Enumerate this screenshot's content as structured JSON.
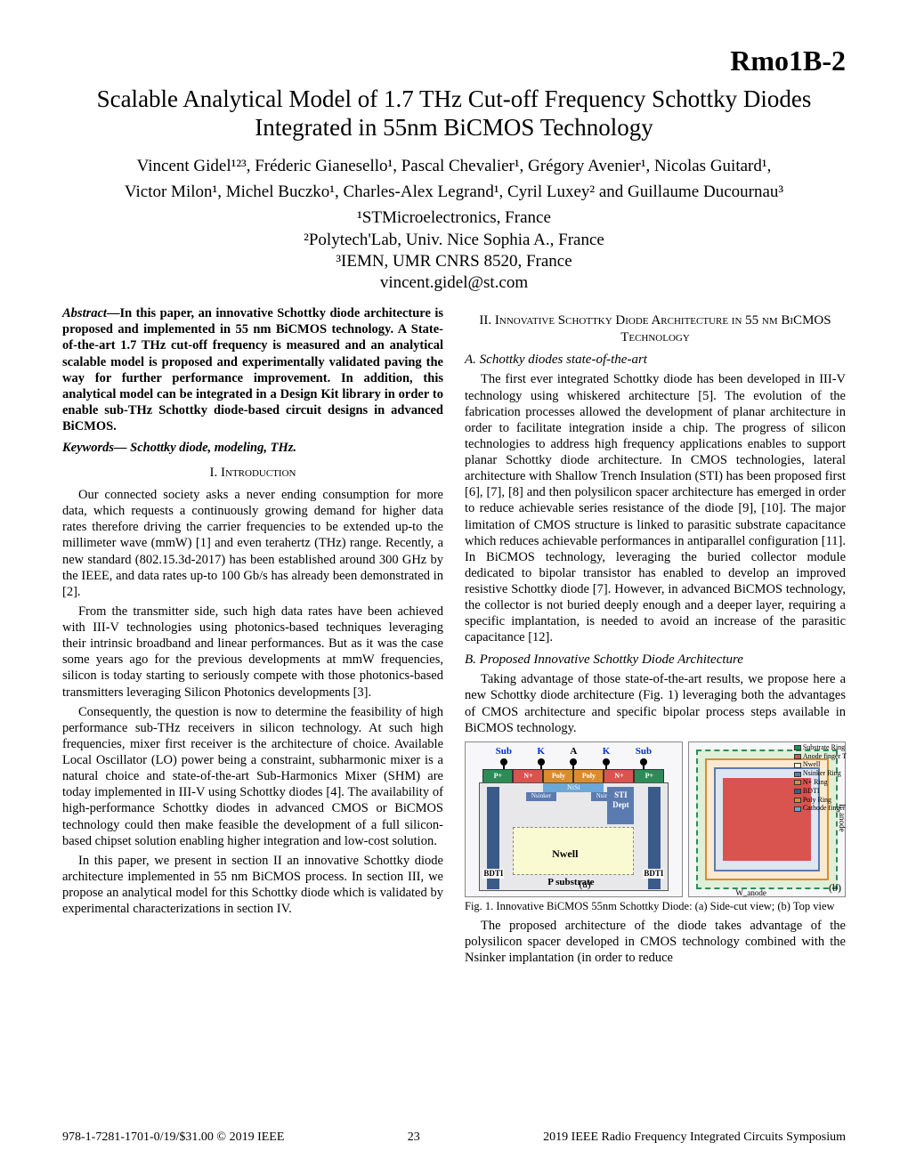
{
  "paper_id": "Rmo1B-2",
  "title": "Scalable Analytical Model of 1.7 THz Cut-off Frequency Schottky Diodes Integrated in 55nm BiCMOS Technology",
  "authors_line1": "Vincent Gidel¹²³, Fréderic Gianesello¹, Pascal Chevalier¹, Grégory Avenier¹, Nicolas Guitard¹,",
  "authors_line2": "Victor Milon¹, Michel Buczko¹, Charles-Alex Legrand¹, Cyril Luxey² and Guillaume Ducournau³",
  "affil1": "¹STMicroelectronics, France",
  "affil2": "²Polytech'Lab, Univ. Nice Sophia A., France",
  "affil3": "³IEMN, UMR CNRS 8520, France",
  "email": "vincent.gidel@st.com",
  "abstract_label": "Abstract",
  "abstract_text": "—In this paper, an innovative Schottky diode architecture is proposed and implemented in 55 nm BiCMOS technology. A State-of-the-art 1.7 THz cut-off frequency is measured and an analytical scalable model is proposed and experimentally validated paving the way for further performance improvement. In addition, this analytical model can be integrated in a Design Kit library in order to enable sub-THz Schottky diode-based circuit designs in advanced BiCMOS.",
  "keywords": "Keywords— Schottky diode, modeling, THz.",
  "sec1_heading": "I.    Introduction",
  "sec1_p1": "Our connected society asks a never ending consumption for more data, which requests a continuously growing demand for higher data rates therefore driving the carrier frequencies to be extended up-to the millimeter wave (mmW) [1] and even terahertz (THz) range. Recently, a new standard (802.15.3d-2017) has been established around 300 GHz by the IEEE, and data rates up-to 100 Gb/s has already been demonstrated in [2].",
  "sec1_p2": "From the transmitter side, such high data rates have been achieved with III-V technologies using photonics-based techniques leveraging their intrinsic broadband and linear performances. But as it was the case some years ago for the previous developments at mmW frequencies, silicon is today starting to seriously compete with those photonics-based transmitters leveraging Silicon Photonics developments [3].",
  "sec1_p3": "Consequently, the question is now to determine the feasibility of high performance sub-THz receivers in silicon technology. At such high frequencies, mixer first receiver is the architecture of choice. Available Local Oscillator (LO) power being a constraint, subharmonic mixer is a natural choice and state-of-the-art Sub-Harmonics Mixer (SHM) are today implemented in III-V using Schottky diodes [4]. The availability of high-performance Schottky diodes in advanced CMOS or BiCMOS technology could then make feasible the development of a full silicon-based chipset solution enabling higher integration and low-cost solution.",
  "sec1_p4": "In this paper, we present in section II an innovative Schottky diode architecture implemented in 55 nm BiCMOS process.  In section III, we propose an analytical model for this Schottky diode which is validated by experimental characterizations in section IV.",
  "sec2_heading": "II.   Innovative Schottky Diode Architecture in 55 nm BiCMOS Technology",
  "sec2a_heading": "A.  Schottky diodes state-of-the-art",
  "sec2a_p1": "The first ever integrated Schottky diode has been developed in III-V technology using whiskered architecture [5]. The evolution of the fabrication processes allowed the development of planar architecture in order to facilitate integration inside a chip. The progress of silicon technologies to address high frequency applications enables to support planar Schottky diode architecture. In CMOS technologies, lateral architecture with Shallow Trench Insulation (STI) has been proposed first [6], [7], [8] and then polysilicon spacer architecture has emerged in order to reduce achievable series resistance of the diode [9], [10]. The major limitation of CMOS structure is linked to parasitic substrate capacitance which reduces achievable performances in antiparallel configuration [11]. In BiCMOS technology, leveraging the buried collector module dedicated to bipolar transistor has enabled to develop an improved resistive Schottky diode [7]. However, in advanced BiCMOS technology, the collector is not buried deeply enough and a deeper layer, requiring a specific implantation, is needed to avoid an increase of the parasitic capacitance [12].",
  "sec2b_heading": "B.  Proposed Innovative Schottky Diode Architecture",
  "sec2b_p1": "Taking advantage of those state-of-the-art results, we propose here a new Schottky diode architecture (Fig.  1) leveraging both the advantages of CMOS architecture and specific bipolar process steps available in BiCMOS technology.",
  "sec2b_p2": "The proposed architecture of the diode takes advantage of the polysilicon spacer developed in CMOS technology combined with the Nsinker implantation (in order to reduce",
  "fig_caption": "Fig.  1.   Innovative BiCMOS 55nm Schottky Diode: (a) Side-cut view; (b) Top view",
  "fig_a": {
    "contacts": [
      "Sub",
      "K",
      "A",
      "K",
      "Sub"
    ],
    "top_segments": [
      "P+",
      "N+",
      "Poly",
      "Poly",
      "N+",
      "P+"
    ],
    "nisi": "NiSi",
    "nsinker": "Nsinker",
    "sti": "STI Dept",
    "nwell": "Nwell",
    "bdti": "BDTI",
    "psub": "P substrate",
    "tag": "(a)"
  },
  "fig_b": {
    "labels": [
      "Substrate Ring",
      "Anode finger T",
      "Nwell",
      "Nsinker Ring",
      "N+ Ring",
      "BDTI",
      "Poly Ring",
      "Cathode finger"
    ],
    "colors": [
      "#2e8b57",
      "#d9534f",
      "#fafad2",
      "#5b7bb0",
      "#d98d2e",
      "#3a5a8a",
      "#d98d2e",
      "#6aa8d8"
    ],
    "dim_w": "W_anode",
    "dim_l": "L_anode",
    "tag": "(b)"
  },
  "footer_left": "978-1-7281-1701-0/19/$31.00 © 2019 IEEE",
  "footer_center": "23",
  "footer_right": "2019 IEEE Radio Frequency Integrated Circuits Symposium"
}
